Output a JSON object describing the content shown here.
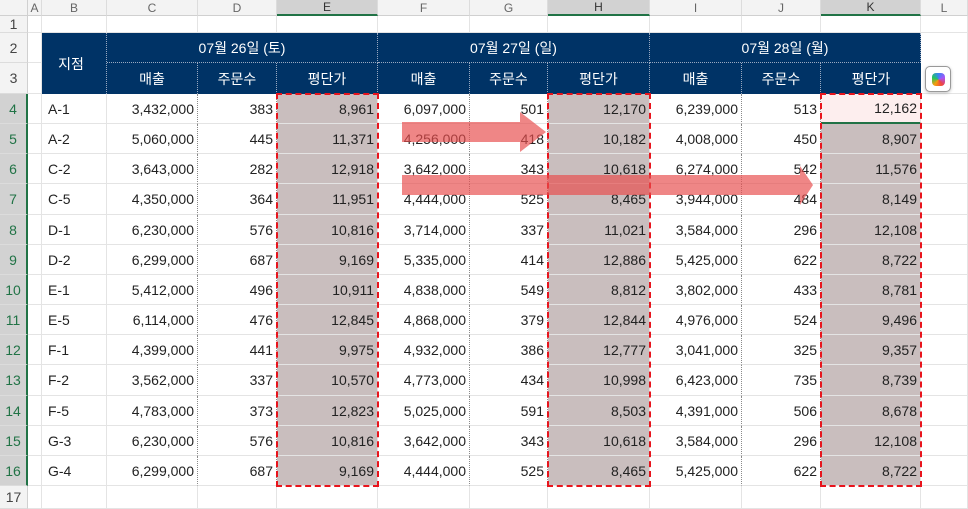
{
  "columns": [
    "A",
    "B",
    "C",
    "D",
    "E",
    "F",
    "G",
    "H",
    "I",
    "J",
    "K",
    "L"
  ],
  "selected_columns": [
    "E",
    "H",
    "K"
  ],
  "row_numbers": [
    1,
    2,
    3,
    4,
    5,
    6,
    7,
    8,
    9,
    10,
    11,
    12,
    13,
    14,
    15,
    16,
    17
  ],
  "header": {
    "branch_label": "지점",
    "date_groups": [
      "07월 26일 (토)",
      "07월 27일 (일)",
      "07월 28일 (월)"
    ],
    "sub_headers": [
      "매출",
      "주문수",
      "평단가"
    ]
  },
  "rows": [
    [
      "A-1",
      "3,432,000",
      "383",
      "8,961",
      "6,097,000",
      "501",
      "12,170",
      "6,239,000",
      "513",
      "12,162"
    ],
    [
      "A-2",
      "5,060,000",
      "445",
      "11,371",
      "4,256,000",
      "418",
      "10,182",
      "4,008,000",
      "450",
      "8,907"
    ],
    [
      "C-2",
      "3,643,000",
      "282",
      "12,918",
      "3,642,000",
      "343",
      "10,618",
      "6,274,000",
      "542",
      "11,576"
    ],
    [
      "C-5",
      "4,350,000",
      "364",
      "11,951",
      "4,444,000",
      "525",
      "8,465",
      "3,944,000",
      "484",
      "8,149"
    ],
    [
      "D-1",
      "6,230,000",
      "576",
      "10,816",
      "3,714,000",
      "337",
      "11,021",
      "3,584,000",
      "296",
      "12,108"
    ],
    [
      "D-2",
      "6,299,000",
      "687",
      "9,169",
      "5,335,000",
      "414",
      "12,886",
      "5,425,000",
      "622",
      "8,722"
    ],
    [
      "E-1",
      "5,412,000",
      "496",
      "10,911",
      "4,838,000",
      "549",
      "8,812",
      "3,802,000",
      "433",
      "8,781"
    ],
    [
      "E-5",
      "6,114,000",
      "476",
      "12,845",
      "4,868,000",
      "379",
      "12,844",
      "4,976,000",
      "524",
      "9,496"
    ],
    [
      "F-1",
      "4,399,000",
      "441",
      "9,975",
      "4,932,000",
      "386",
      "12,777",
      "3,041,000",
      "325",
      "9,357"
    ],
    [
      "F-2",
      "3,562,000",
      "337",
      "10,570",
      "4,773,000",
      "434",
      "10,998",
      "6,423,000",
      "735",
      "8,739"
    ],
    [
      "F-5",
      "4,783,000",
      "373",
      "12,823",
      "5,025,000",
      "591",
      "8,503",
      "4,391,000",
      "506",
      "8,678"
    ],
    [
      "G-3",
      "6,230,000",
      "576",
      "10,816",
      "3,642,000",
      "343",
      "10,618",
      "3,584,000",
      "296",
      "12,108"
    ],
    [
      "G-4",
      "6,299,000",
      "687",
      "9,169",
      "4,444,000",
      "525",
      "8,465",
      "5,425,000",
      "622",
      "8,722"
    ]
  ],
  "active_cell": "K4",
  "colors": {
    "header_bg": "#003366",
    "selection_fill": "#c9bebe",
    "dashed_border": "#e8141c",
    "arrow": "#e84c4c",
    "excel_green": "#217346"
  },
  "icons": {
    "copilot": "copilot-icon"
  }
}
